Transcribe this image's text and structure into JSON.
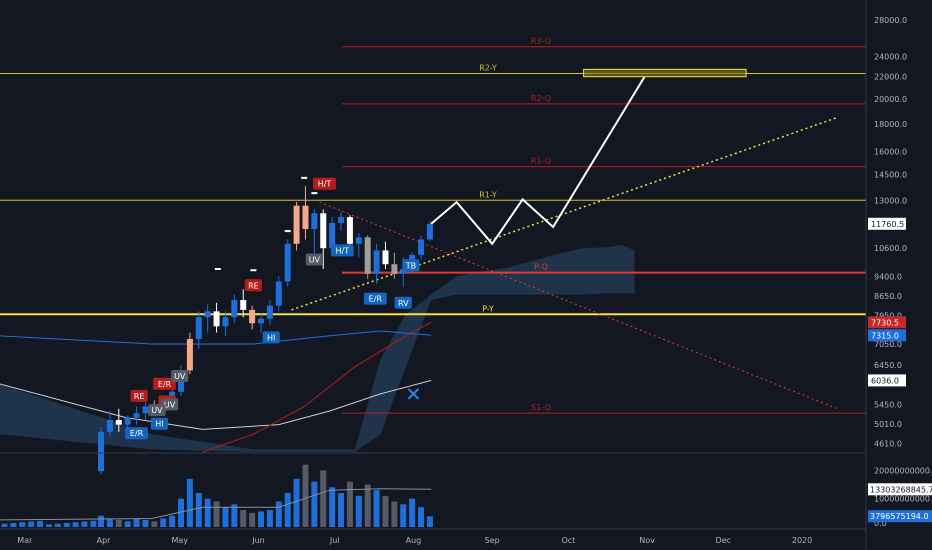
{
  "price_axis": {
    "ticks": [
      {
        "label": "28000.0",
        "value": 28000
      },
      {
        "label": "24000.0",
        "value": 24000
      },
      {
        "label": "22000.0",
        "value": 22000
      },
      {
        "label": "20000.0",
        "value": 20000
      },
      {
        "label": "18000.0",
        "value": 18000
      },
      {
        "label": "16000.0",
        "value": 16000
      },
      {
        "label": "14500.0",
        "value": 14500
      },
      {
        "label": "13000.0",
        "value": 13000
      },
      {
        "label": "10600.0",
        "value": 10600
      },
      {
        "label": "9400.0",
        "value": 9400
      },
      {
        "label": "8650.0",
        "value": 8650
      },
      {
        "label": "7950.0",
        "value": 7950
      },
      {
        "label": "7050.0",
        "value": 7050
      },
      {
        "label": "6450.0",
        "value": 6450
      },
      {
        "label": "5450.0",
        "value": 5450
      },
      {
        "label": "5010.0",
        "value": 5010
      },
      {
        "label": "4610.0",
        "value": 4610
      }
    ],
    "badges": [
      {
        "label": "11760.5",
        "value": 11760.5,
        "bg": "#ffffff",
        "fg": "#131722"
      },
      {
        "label": "7730.5",
        "value": 7730.5,
        "bg": "#c62828",
        "fg": "#ffffff"
      },
      {
        "label": "7315.0",
        "value": 7315,
        "bg": "#1e6fd9",
        "fg": "#ffffff"
      },
      {
        "label": "6036.0",
        "value": 6036,
        "bg": "#ffffff",
        "fg": "#131722"
      }
    ]
  },
  "volume_axis": {
    "ticks": [
      {
        "label": "20000000000.0",
        "value": 20000000000
      },
      {
        "label": "10000000000.0",
        "value": 10000000000
      },
      {
        "label": "0.0",
        "value": 0
      }
    ],
    "badges": [
      {
        "label": "13303268845.7",
        "value": 13303268845.7,
        "bg": "#ffffff",
        "fg": "#131722"
      },
      {
        "label": "3796575194.0",
        "value": 3796575194,
        "bg": "#1e6fd9",
        "fg": "#ffffff"
      }
    ]
  },
  "time_axis": {
    "labels": [
      {
        "label": "Mar",
        "day": -30
      },
      {
        "label": "Apr",
        "day": 1
      },
      {
        "label": "May",
        "day": 31
      },
      {
        "label": "Jun",
        "day": 62
      },
      {
        "label": "Jul",
        "day": 92
      },
      {
        "label": "Aug",
        "day": 123
      },
      {
        "label": "Sep",
        "day": 154
      },
      {
        "label": "Oct",
        "day": 184
      },
      {
        "label": "Nov",
        "day": 215
      },
      {
        "label": "Dec",
        "day": 245
      },
      {
        "label": "2020",
        "day": 276
      }
    ]
  },
  "levels": [
    {
      "label": "R3-Q",
      "value": 25000,
      "color": "#b71c1c",
      "width": 1
    },
    {
      "label": "R2-Y",
      "value": 22300,
      "color": "#d4c22a",
      "width": 1
    },
    {
      "label": "R2-Q",
      "value": 19600,
      "color": "#b71c1c",
      "width": 1
    },
    {
      "label": "R1-Q",
      "value": 15000,
      "color": "#b71c1c",
      "width": 1
    },
    {
      "label": "R1-Y",
      "value": 13000,
      "color": "#d4c22a",
      "width": 1
    },
    {
      "label": "P-Q",
      "value": 9550,
      "color": "#e53935",
      "width": 2
    },
    {
      "label": "P-Y",
      "value": 8000,
      "color": "#f5e13c",
      "width": 2
    },
    {
      "label": "S1-Q",
      "value": 5250,
      "color": "#b71c1c",
      "width": 1
    }
  ],
  "markers": [
    {
      "label": "H/T",
      "day": 88,
      "price": 13950,
      "bg": "#b71c1c"
    },
    {
      "label": "RE",
      "day": 60,
      "price": 9050,
      "bg": "#b71c1c"
    },
    {
      "label": "E/R",
      "day": 25,
      "price": 5950,
      "bg": "#b71c1c"
    },
    {
      "label": "RE",
      "day": 15,
      "price": 5650,
      "bg": "#b71c1c"
    },
    {
      "label": "RE",
      "day": 26,
      "price": 5520,
      "bg": "#b71c1c"
    },
    {
      "label": "UV",
      "day": 31,
      "price": 6150,
      "bg": "#555b66"
    },
    {
      "label": "UV",
      "day": 27,
      "price": 5450,
      "bg": "#555b66"
    },
    {
      "label": "UV",
      "day": 22,
      "price": 5320,
      "bg": "#555b66"
    },
    {
      "label": "UV",
      "day": 84,
      "price": 10100,
      "bg": "#555b66"
    },
    {
      "label": "H/T",
      "day": 95,
      "price": 10500,
      "bg": "#1565c0"
    },
    {
      "label": "HI",
      "day": 23,
      "price": 5020,
      "bg": "#1565c0"
    },
    {
      "label": "E/R",
      "day": 14,
      "price": 4820,
      "bg": "#1565c0"
    },
    {
      "label": "HI",
      "day": 67,
      "price": 7250,
      "bg": "#1565c0"
    },
    {
      "label": "E/R",
      "day": 108,
      "price": 8550,
      "bg": "#1565c0"
    },
    {
      "label": "RV",
      "day": 119,
      "price": 8400,
      "bg": "#1565c0"
    },
    {
      "label": "TB",
      "day": 122,
      "price": 9850,
      "bg": "#1565c0"
    }
  ],
  "chart_data": {
    "type": "candlestick",
    "symbol": "",
    "x_unit": "days since 2019-04-01",
    "y_scale": "log",
    "ylim": [
      4450,
      30500
    ],
    "xlim": [
      -40,
      300
    ],
    "candles": [
      {
        "day": 0,
        "o": 4100,
        "h": 4950,
        "l": 4050,
        "c": 4850
      },
      {
        "day": 3.5,
        "o": 4850,
        "h": 5300,
        "l": 4750,
        "c": 5100
      },
      {
        "day": 7,
        "o": 5100,
        "h": 5350,
        "l": 4850,
        "c": 5000
      },
      {
        "day": 10.5,
        "o": 5000,
        "h": 5200,
        "l": 4900,
        "c": 5150
      },
      {
        "day": 14,
        "o": 5150,
        "h": 5400,
        "l": 5000,
        "c": 5250
      },
      {
        "day": 17.5,
        "o": 5250,
        "h": 5500,
        "l": 5100,
        "c": 5400
      },
      {
        "day": 21,
        "o": 5400,
        "h": 5550,
        "l": 5200,
        "c": 5300
      },
      {
        "day": 24.5,
        "o": 5300,
        "h": 5550,
        "l": 5200,
        "c": 5500
      },
      {
        "day": 28,
        "o": 5500,
        "h": 5900,
        "l": 5350,
        "c": 5750
      },
      {
        "day": 31.5,
        "o": 5750,
        "h": 6450,
        "l": 5650,
        "c": 6300
      },
      {
        "day": 35,
        "o": 6300,
        "h": 7400,
        "l": 6200,
        "c": 7200
      },
      {
        "day": 38.5,
        "o": 7200,
        "h": 8100,
        "l": 6900,
        "c": 7900
      },
      {
        "day": 42,
        "o": 7900,
        "h": 8350,
        "l": 7400,
        "c": 8100
      },
      {
        "day": 45.5,
        "o": 8100,
        "h": 8400,
        "l": 7400,
        "c": 7600
      },
      {
        "day": 49,
        "o": 7600,
        "h": 8100,
        "l": 7300,
        "c": 7900
      },
      {
        "day": 52.5,
        "o": 7900,
        "h": 8700,
        "l": 7700,
        "c": 8500
      },
      {
        "day": 56,
        "o": 8500,
        "h": 8900,
        "l": 7900,
        "c": 8150
      },
      {
        "day": 59.5,
        "o": 8150,
        "h": 8300,
        "l": 7500,
        "c": 7700
      },
      {
        "day": 63,
        "o": 7700,
        "h": 8000,
        "l": 7400,
        "c": 7850
      },
      {
        "day": 66.5,
        "o": 7850,
        "h": 8500,
        "l": 7650,
        "c": 8300
      },
      {
        "day": 70,
        "o": 8300,
        "h": 9400,
        "l": 8100,
        "c": 9200
      },
      {
        "day": 73.5,
        "o": 9200,
        "h": 11000,
        "l": 9000,
        "c": 10800
      },
      {
        "day": 77,
        "o": 10800,
        "h": 12900,
        "l": 10500,
        "c": 12700
      },
      {
        "day": 80.5,
        "o": 12700,
        "h": 13800,
        "l": 11000,
        "c": 11500
      },
      {
        "day": 84,
        "o": 11500,
        "h": 12500,
        "l": 10200,
        "c": 12300
      },
      {
        "day": 87.5,
        "o": 12300,
        "h": 12500,
        "l": 9700,
        "c": 10600
      },
      {
        "day": 91,
        "o": 10600,
        "h": 12100,
        "l": 10300,
        "c": 11800
      },
      {
        "day": 94.5,
        "o": 11800,
        "h": 12400,
        "l": 11400,
        "c": 12100
      },
      {
        "day": 98,
        "o": 12100,
        "h": 12200,
        "l": 10500,
        "c": 10800
      },
      {
        "day": 101.5,
        "o": 10800,
        "h": 11300,
        "l": 10200,
        "c": 11100
      },
      {
        "day": 105,
        "o": 11100,
        "h": 11200,
        "l": 9300,
        "c": 9500
      },
      {
        "day": 108.5,
        "o": 9500,
        "h": 10800,
        "l": 9100,
        "c": 10500
      },
      {
        "day": 112,
        "o": 10500,
        "h": 10900,
        "l": 9700,
        "c": 9900
      },
      {
        "day": 115.5,
        "o": 9900,
        "h": 10400,
        "l": 9300,
        "c": 9500
      },
      {
        "day": 119,
        "o": 9500,
        "h": 10200,
        "l": 9000,
        "c": 9700
      },
      {
        "day": 122.5,
        "o": 9700,
        "h": 10400,
        "l": 9500,
        "c": 10300
      },
      {
        "day": 126,
        "o": 10300,
        "h": 11200,
        "l": 10100,
        "c": 11000
      },
      {
        "day": 129.5,
        "o": 11000,
        "h": 11900,
        "l": 10900,
        "c": 11760.5
      }
    ],
    "volume": [
      {
        "day": 0,
        "v": 4000000000.0
      },
      {
        "day": 3.5,
        "v": 3000000000.0
      },
      {
        "day": 7,
        "v": 2500000000.0
      },
      {
        "day": 10.5,
        "v": 2000000000.0
      },
      {
        "day": 14,
        "v": 3000000000.0
      },
      {
        "day": 17.5,
        "v": 2500000000.0
      },
      {
        "day": 21,
        "v": 2000000000.0
      },
      {
        "day": 24.5,
        "v": 3000000000.0
      },
      {
        "day": 28,
        "v": 4000000000.0
      },
      {
        "day": 31.5,
        "v": 10000000000.0
      },
      {
        "day": 35,
        "v": 17000000000.0
      },
      {
        "day": 38.5,
        "v": 12000000000.0
      },
      {
        "day": 42,
        "v": 10000000000.0
      },
      {
        "day": 45.5,
        "v": 9000000000.0
      },
      {
        "day": 49,
        "v": 7000000000.0
      },
      {
        "day": 52.5,
        "v": 8000000000.0
      },
      {
        "day": 56,
        "v": 6000000000.0
      },
      {
        "day": 59.5,
        "v": 5000000000.0
      },
      {
        "day": 63,
        "v": 5500000000.0
      },
      {
        "day": 66.5,
        "v": 6000000000.0
      },
      {
        "day": 70,
        "v": 9000000000.0
      },
      {
        "day": 73.5,
        "v": 12000000000.0
      },
      {
        "day": 77,
        "v": 17000000000.0
      },
      {
        "day": 80.5,
        "v": 22000000000.0
      },
      {
        "day": 84,
        "v": 16000000000.0
      },
      {
        "day": 87.5,
        "v": 20000000000.0
      },
      {
        "day": 91,
        "v": 14000000000.0
      },
      {
        "day": 94.5,
        "v": 12000000000.0
      },
      {
        "day": 98,
        "v": 16000000000.0
      },
      {
        "day": 101.5,
        "v": 11000000000.0
      },
      {
        "day": 105,
        "v": 15000000000.0
      },
      {
        "day": 108.5,
        "v": 13000000000.0
      },
      {
        "day": 112,
        "v": 11000000000.0
      },
      {
        "day": 115.5,
        "v": 9000000000.0
      },
      {
        "day": 119,
        "v": 8000000000.0
      },
      {
        "day": 122.5,
        "v": 10000000000.0
      },
      {
        "day": 126,
        "v": 7000000000.0
      },
      {
        "day": 129.5,
        "v": 3796575194
      }
    ],
    "projection": [
      {
        "day": 130,
        "price": 11760
      },
      {
        "day": 140,
        "price": 12900
      },
      {
        "day": 154,
        "price": 10800
      },
      {
        "day": 166,
        "price": 13050
      },
      {
        "day": 178,
        "price": 11600
      },
      {
        "day": 214,
        "price": 22000
      }
    ],
    "target_box": {
      "day0": 190,
      "day1": 254,
      "p0": 22000,
      "p1": 22700
    },
    "support_trendline": [
      {
        "day": 75,
        "price": 8150
      },
      {
        "day": 290,
        "price": 18500
      }
    ],
    "resistance_trendline": [
      {
        "day": 86,
        "price": 12900
      },
      {
        "day": 290,
        "price": 5350
      }
    ],
    "cloud_upper": [
      {
        "day": -40,
        "price": 5950
      },
      {
        "day": 20,
        "price": 4800
      },
      {
        "day": 60,
        "price": 4500
      },
      {
        "day": 100,
        "price": 4500
      },
      {
        "day": 110,
        "price": 6600
      },
      {
        "day": 120,
        "price": 8000
      },
      {
        "day": 130,
        "price": 8700
      },
      {
        "day": 140,
        "price": 9400
      },
      {
        "day": 150,
        "price": 9600
      },
      {
        "day": 160,
        "price": 9750
      },
      {
        "day": 170,
        "price": 10050
      },
      {
        "day": 180,
        "price": 10350
      },
      {
        "day": 190,
        "price": 10600
      },
      {
        "day": 200,
        "price": 10650
      },
      {
        "day": 205,
        "price": 10750
      },
      {
        "day": 210,
        "price": 10500
      }
    ],
    "cloud_lower": [
      {
        "day": -40,
        "price": 4800
      },
      {
        "day": 20,
        "price": 4500
      },
      {
        "day": 60,
        "price": 4450
      },
      {
        "day": 100,
        "price": 4450
      },
      {
        "day": 110,
        "price": 4800
      },
      {
        "day": 120,
        "price": 6400
      },
      {
        "day": 130,
        "price": 8500
      },
      {
        "day": 140,
        "price": 8700
      },
      {
        "day": 150,
        "price": 8700
      },
      {
        "day": 160,
        "price": 8700
      },
      {
        "day": 170,
        "price": 8700
      },
      {
        "day": 180,
        "price": 8700
      },
      {
        "day": 190,
        "price": 8700
      },
      {
        "day": 200,
        "price": 8750
      },
      {
        "day": 205,
        "price": 8750
      },
      {
        "day": 210,
        "price": 8750
      }
    ],
    "ma_fast": [
      {
        "day": -40,
        "price": 7300
      },
      {
        "day": 20,
        "price": 7050
      },
      {
        "day": 60,
        "price": 7050
      },
      {
        "day": 90,
        "price": 7300
      },
      {
        "day": 110,
        "price": 7450
      },
      {
        "day": 130,
        "price": 7315
      }
    ],
    "ma_slow": [
      {
        "day": -40,
        "price": 5950
      },
      {
        "day": 10,
        "price": 5150
      },
      {
        "day": 40,
        "price": 4900
      },
      {
        "day": 70,
        "price": 5000
      },
      {
        "day": 90,
        "price": 5300
      },
      {
        "day": 110,
        "price": 5700
      },
      {
        "day": 130,
        "price": 6036
      }
    ],
    "ma_red": [
      {
        "day": 40,
        "price": 4450
      },
      {
        "day": 60,
        "price": 4800
      },
      {
        "day": 80,
        "price": 5400
      },
      {
        "day": 100,
        "price": 6400
      },
      {
        "day": 120,
        "price": 7300
      },
      {
        "day": 130,
        "price": 7730
      }
    ],
    "x_cross": {
      "day": 123,
      "price": 5700
    },
    "colors": {
      "up": "#1e6fd9",
      "down": "#ffffff",
      "down_alt": "#9e9e9e",
      "top": "#f4a988",
      "projection": "#ffffff",
      "support": "#f5e13c",
      "resistance": "#e53935",
      "cloud": "#2a4a6b",
      "ma_fast": "#1e6fd9",
      "ma_slow": "#d0d0d0",
      "ma_red": "#b71c1c",
      "vol_up": "#1e6fd9",
      "vol_down": "#555b66"
    }
  }
}
